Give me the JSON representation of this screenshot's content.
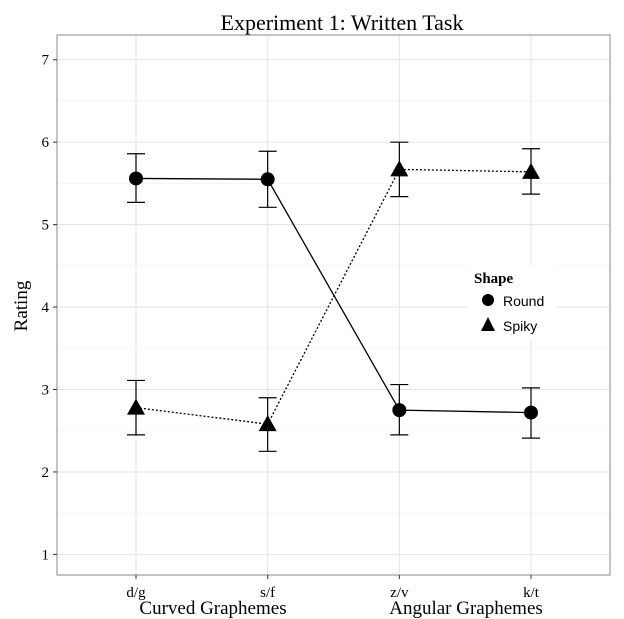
{
  "chart_data": {
    "type": "line",
    "title": "Experiment 1: Written Task",
    "ylabel": "Rating",
    "ylim": [
      0.75,
      7.3
    ],
    "yticks": [
      1,
      2,
      3,
      4,
      5,
      6,
      7
    ],
    "categories": [
      "d/g",
      "s/f",
      "z/v",
      "k/t"
    ],
    "group_labels": [
      "Curved Graphemes",
      "Angular Graphemes"
    ],
    "grid": true,
    "legend": {
      "title": "Shape",
      "position": "right"
    },
    "series": [
      {
        "name": "Round",
        "marker": "circle",
        "line": "solid",
        "values": [
          5.56,
          5.55,
          2.75,
          2.72
        ],
        "err_low": [
          5.27,
          5.21,
          2.45,
          2.41
        ],
        "err_high": [
          5.86,
          5.89,
          3.06,
          3.02
        ]
      },
      {
        "name": "Spiky",
        "marker": "triangle",
        "line": "dotted",
        "values": [
          2.78,
          2.58,
          5.67,
          5.64
        ],
        "err_low": [
          2.45,
          2.25,
          5.34,
          5.37
        ],
        "err_high": [
          3.11,
          2.9,
          6.0,
          5.92
        ]
      }
    ]
  }
}
